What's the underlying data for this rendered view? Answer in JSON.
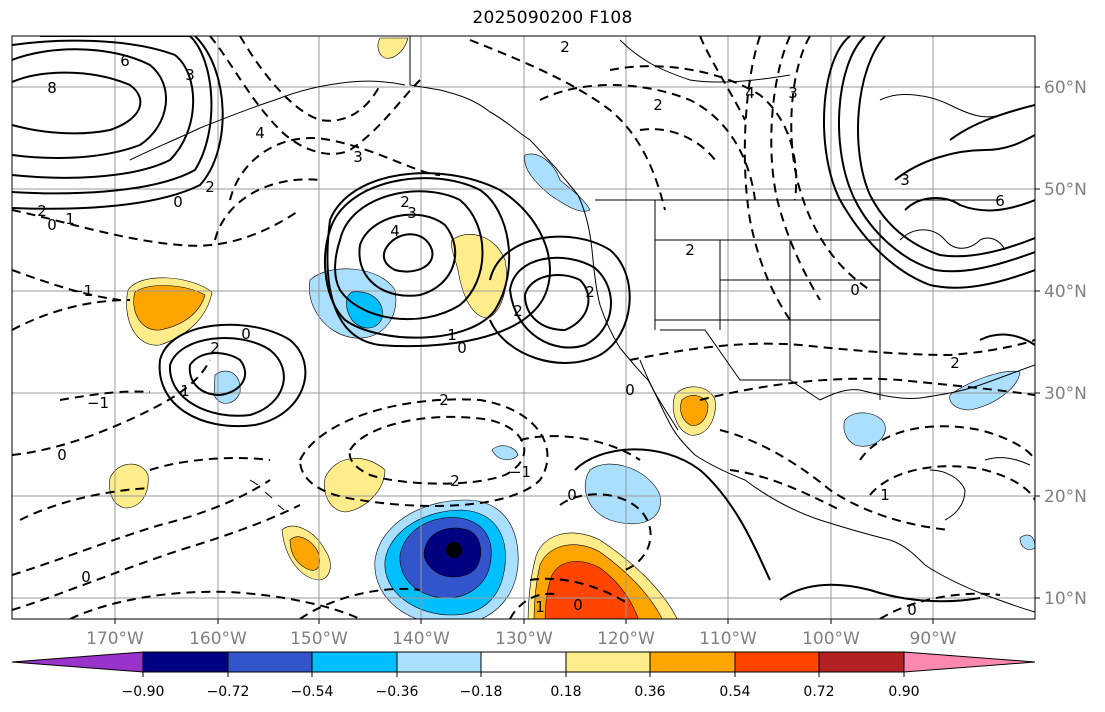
{
  "title": "2025090200 F108",
  "lon_labels": [
    "170°W",
    "160°W",
    "150°W",
    "140°W",
    "130°W",
    "120°W",
    "110°W",
    "100°W",
    "90°W"
  ],
  "lat_labels": [
    "60°N",
    "50°N",
    "40°N",
    "30°N",
    "20°N",
    "10°N"
  ],
  "colorbar": {
    "ticks": [
      "−0.90",
      "−0.72",
      "−0.54",
      "−0.36",
      "−0.18",
      "0.18",
      "0.36",
      "0.54",
      "0.72",
      "0.90"
    ],
    "colors": [
      "#9933cc",
      "#000080",
      "#3355cc",
      "#00bfff",
      "#aadfff",
      "#ffffff",
      "#ffec8b",
      "#ffa500",
      "#ff4500",
      "#b22222",
      "#ff88b0"
    ]
  },
  "contour_labels": [
    "6",
    "8",
    "3",
    "2",
    "0",
    "1",
    "4",
    "−1",
    "2",
    "0",
    "3",
    "2",
    "4",
    "3",
    "2",
    "2",
    "1",
    "0",
    "2",
    "1",
    "2",
    "0",
    "−1",
    "2",
    "0",
    "−1",
    "0",
    "1",
    "0",
    "0",
    "2",
    "3",
    "4",
    "6",
    "0",
    "2",
    "3",
    "2",
    "0",
    "1",
    "2",
    "0"
  ],
  "center_marker": "storm-center"
}
